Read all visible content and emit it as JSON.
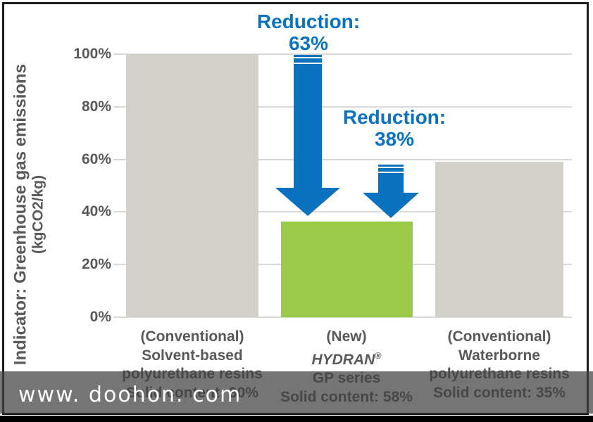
{
  "colors": {
    "accent": "#0b72c0",
    "bar_gray": "#d3d0c9",
    "bar_green": "#9aca49",
    "text_gray": "#595959",
    "grid": "#d9d9d9",
    "band": "rgba(64,64,64,0.72)"
  },
  "chart_data": {
    "type": "bar",
    "ylabel_line1": "Indicator: Greenhouse gas emissions",
    "ylabel_line2": "(kgCO2/kg)",
    "ylim": [
      0,
      100
    ],
    "grid": true,
    "legend": false,
    "y_ticks": [
      "100%",
      "80%",
      "60%",
      "40%",
      "20%",
      "0%"
    ],
    "categories": [
      {
        "lines": [
          "(Conventional)",
          "Solvent-based",
          "polyurethane resins",
          "Solid content: 30%"
        ],
        "value": 100,
        "color_key": "bar_gray"
      },
      {
        "lines": [
          "(New)",
          "HYDRAN",
          "GP series",
          "Solid content: 58%"
        ],
        "reg_mark": "®",
        "value": 36.5,
        "color_key": "bar_green"
      },
      {
        "lines": [
          "(Conventional)",
          "Waterborne",
          "polyurethane resins",
          "Solid content: 35%"
        ],
        "value": 59,
        "color_key": "bar_gray"
      }
    ],
    "annotations": [
      {
        "label": "Reduction:",
        "value": "63%"
      },
      {
        "label": "Reduction:",
        "value": "38%"
      }
    ]
  },
  "watermark": {
    "text": "www. doohon. com"
  }
}
